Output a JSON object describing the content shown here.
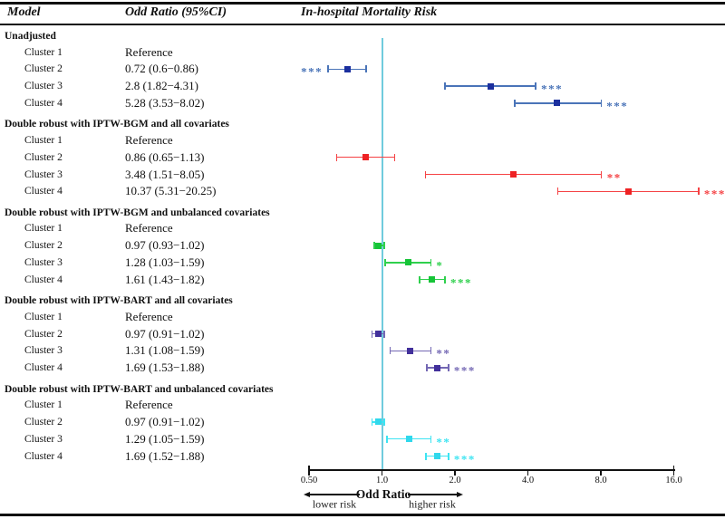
{
  "header": {
    "model": "Model",
    "odd_ratio": "Odd Ratio (95%CI)",
    "plot_title": "In-hospital Mortality Risk"
  },
  "axis": {
    "tick_values": [
      0.5,
      1.0,
      2.0,
      4.0,
      8.0,
      16.0
    ],
    "tick_labels": [
      "0.50",
      "1.0",
      "2.0",
      "4.0",
      "8.0",
      "16.0"
    ],
    "label": "Odd Ratio",
    "lower_label": "lower risk",
    "higher_label": "higher risk",
    "ref_value": 1.0
  },
  "colors": {
    "ref_line": "#70cbdd",
    "axis": "#111111"
  },
  "chart_data": {
    "type": "forest",
    "title": "In-hospital Mortality Risk",
    "xlabel": "Odd Ratio",
    "x_scale": "log2",
    "x_ticks": [
      0.5,
      1.0,
      2.0,
      4.0,
      8.0,
      16.0
    ],
    "xlim": [
      0.5,
      16.0
    ],
    "ref_line": 1.0,
    "groups": [
      {
        "label": "Unadjusted",
        "line_color": "#4a74b8",
        "marker_color": "#1b2f9e",
        "rows": [
          {
            "label": "Cluster 1",
            "display": "Reference",
            "or": null,
            "lo": null,
            "hi": null,
            "sig": "",
            "sig_side": ""
          },
          {
            "label": "Cluster 2",
            "display": "0.72 (0.6−0.86)",
            "or": 0.72,
            "lo": 0.6,
            "hi": 0.86,
            "sig": "***",
            "sig_side": "left"
          },
          {
            "label": "Cluster 3",
            "display": "2.8 (1.82−4.31)",
            "or": 2.8,
            "lo": 1.82,
            "hi": 4.31,
            "sig": "***",
            "sig_side": "right"
          },
          {
            "label": "Cluster 4",
            "display": "5.28 (3.53−8.02)",
            "or": 5.28,
            "lo": 3.53,
            "hi": 8.02,
            "sig": "***",
            "sig_side": "right"
          }
        ]
      },
      {
        "label": "Double robust with IPTW-BGM and all covariates",
        "line_color": "#f54244",
        "marker_color": "#ee2224",
        "rows": [
          {
            "label": "Cluster 1",
            "display": "Reference",
            "or": null,
            "lo": null,
            "hi": null,
            "sig": "",
            "sig_side": ""
          },
          {
            "label": "Cluster 2",
            "display": "0.86 (0.65−1.13)",
            "or": 0.86,
            "lo": 0.65,
            "hi": 1.13,
            "sig": "",
            "sig_side": "right"
          },
          {
            "label": "Cluster 3",
            "display": "3.48 (1.51−8.05)",
            "or": 3.48,
            "lo": 1.51,
            "hi": 8.05,
            "sig": "**",
            "sig_side": "right"
          },
          {
            "label": "Cluster 4",
            "display": "10.37 (5.31−20.25)",
            "or": 10.37,
            "lo": 5.31,
            "hi": 20.25,
            "sig": "***",
            "sig_side": "right"
          }
        ]
      },
      {
        "label": "Double robust with IPTW-BGM and unbalanced covariates",
        "line_color": "#2fd04d",
        "marker_color": "#17c438",
        "rows": [
          {
            "label": "Cluster 1",
            "display": "Reference",
            "or": null,
            "lo": null,
            "hi": null,
            "sig": "",
            "sig_side": ""
          },
          {
            "label": "Cluster 2",
            "display": "0.97 (0.93−1.02)",
            "or": 0.97,
            "lo": 0.93,
            "hi": 1.02,
            "sig": "",
            "sig_side": "right"
          },
          {
            "label": "Cluster 3",
            "display": "1.28 (1.03−1.59)",
            "or": 1.28,
            "lo": 1.03,
            "hi": 1.59,
            "sig": "*",
            "sig_side": "right"
          },
          {
            "label": "Cluster 4",
            "display": "1.61 (1.43−1.82)",
            "or": 1.61,
            "lo": 1.43,
            "hi": 1.82,
            "sig": "***",
            "sig_side": "right"
          }
        ]
      },
      {
        "label": "Double robust with IPTW-BART and all covariates",
        "line_color": "#7468b4",
        "marker_color": "#42309b",
        "rows": [
          {
            "label": "Cluster 1",
            "display": "Reference",
            "or": null,
            "lo": null,
            "hi": null,
            "sig": "",
            "sig_side": ""
          },
          {
            "label": "Cluster 2",
            "display": "0.97 (0.91−1.02)",
            "or": 0.97,
            "lo": 0.91,
            "hi": 1.02,
            "sig": "",
            "sig_side": "right"
          },
          {
            "label": "Cluster 3",
            "display": "1.31 (1.08−1.59)",
            "or": 1.31,
            "lo": 1.08,
            "hi": 1.59,
            "sig": "**",
            "sig_side": "right"
          },
          {
            "label": "Cluster 4",
            "display": "1.69 (1.53−1.88)",
            "or": 1.69,
            "lo": 1.53,
            "hi": 1.88,
            "sig": "***",
            "sig_side": "right"
          }
        ]
      },
      {
        "label": "Double robust with IPTW-BART and unbalanced covariates",
        "line_color": "#3de4f2",
        "marker_color": "#30d8ec",
        "rows": [
          {
            "label": "Cluster 1",
            "display": "Reference",
            "or": null,
            "lo": null,
            "hi": null,
            "sig": "",
            "sig_side": ""
          },
          {
            "label": "Cluster 2",
            "display": "0.97 (0.91−1.02)",
            "or": 0.97,
            "lo": 0.91,
            "hi": 1.02,
            "sig": "",
            "sig_side": "right"
          },
          {
            "label": "Cluster 3",
            "display": "1.29 (1.05−1.59)",
            "or": 1.29,
            "lo": 1.05,
            "hi": 1.59,
            "sig": "**",
            "sig_side": "right"
          },
          {
            "label": "Cluster 4",
            "display": "1.69 (1.52−1.88)",
            "or": 1.69,
            "lo": 1.52,
            "hi": 1.88,
            "sig": "***",
            "sig_side": "right"
          }
        ]
      }
    ]
  }
}
